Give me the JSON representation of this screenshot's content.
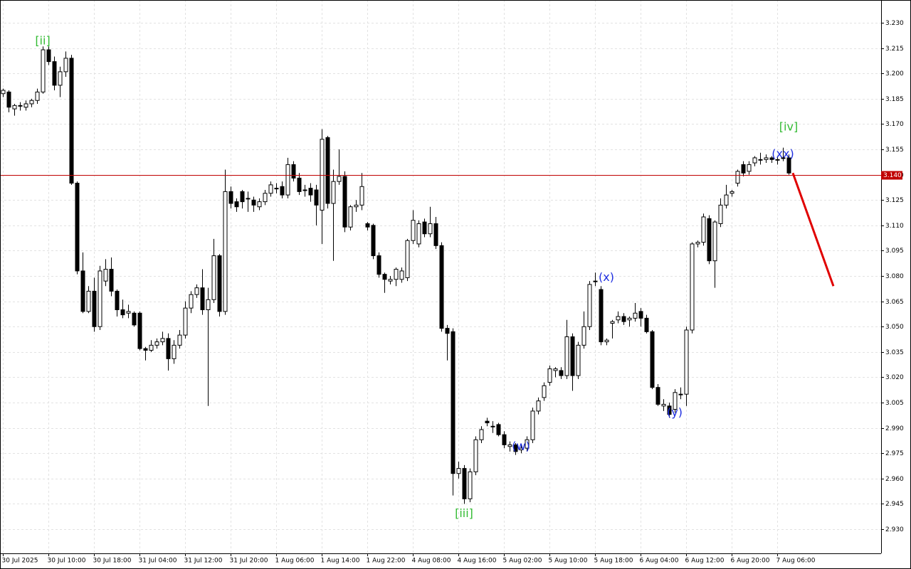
{
  "chart_data": {
    "type": "candlestick",
    "categories": [
      "30 Jul 2025",
      null,
      null,
      null,
      null,
      null,
      null,
      null,
      "30 Jul 10:00",
      null,
      null,
      null,
      null,
      null,
      null,
      null,
      "30 Jul 18:00",
      null,
      null,
      null,
      null,
      null,
      null,
      null,
      "31 Jul 04:00",
      null,
      null,
      null,
      null,
      null,
      null,
      null,
      "31 Jul 12:00",
      null,
      null,
      null,
      null,
      null,
      null,
      null,
      "31 Jul 20:00",
      null,
      null,
      null,
      null,
      null,
      null,
      null,
      "1 Aug 06:00",
      null,
      null,
      null,
      null,
      null,
      null,
      null,
      "1 Aug 14:00",
      null,
      null,
      null,
      null,
      null,
      null,
      null,
      "1 Aug 22:00",
      null,
      null,
      null,
      null,
      null,
      null,
      null,
      "4 Aug 08:00",
      null,
      null,
      null,
      null,
      null,
      null,
      null,
      "4 Aug 16:00",
      null,
      null,
      null,
      null,
      null,
      null,
      null,
      "5 Aug 02:00",
      null,
      null,
      null,
      null,
      null,
      null,
      null,
      "5 Aug 10:00",
      null,
      null,
      null,
      null,
      null,
      null,
      null,
      "5 Aug 18:00",
      null,
      null,
      null,
      null,
      null,
      null,
      null,
      "6 Aug 04:00",
      null,
      null,
      null,
      null,
      null,
      null,
      null,
      "6 Aug 12:00",
      null,
      null,
      null,
      null,
      null,
      null,
      null,
      "6 Aug 20:00",
      null,
      null,
      null,
      null,
      null,
      null,
      null,
      "7 Aug 06:00",
      null,
      null
    ],
    "open": [
      3.188,
      3.189,
      3.179,
      3.181,
      3.18,
      3.182,
      3.184,
      3.189,
      3.214,
      3.207,
      3.193,
      3.201,
      3.209,
      3.135,
      3.083,
      3.059,
      3.071,
      3.05,
      3.077,
      3.084,
      3.071,
      3.06,
      3.058,
      3.058,
      3.058,
      3.037,
      3.036,
      3.039,
      3.041,
      3.043,
      3.031,
      3.039,
      3.045,
      3.061,
      3.069,
      3.073,
      3.06,
      3.066,
      3.092,
      3.059,
      3.13,
      3.124,
      3.13,
      3.126,
      3.125,
      3.121,
      3.124,
      3.129,
      3.132,
      3.133,
      3.128,
      3.146,
      3.138,
      3.131,
      3.132,
      3.131,
      3.119,
      3.162,
      3.123,
      3.136,
      3.139,
      3.109,
      3.121,
      3.122,
      3.111,
      3.11,
      3.092,
      3.081,
      3.077,
      3.078,
      3.078,
      3.079,
      3.101,
      3.099,
      3.112,
      3.105,
      3.111,
      3.098,
      3.049,
      3.047,
      2.963,
      2.966,
      2.948,
      2.964,
      2.983,
      2.994,
      2.991,
      2.992,
      2.986,
      2.979,
      2.98,
      2.977,
      2.978,
      2.983,
      3.0,
      3.008,
      3.017,
      3.024,
      3.024,
      3.021,
      3.044,
      3.021,
      3.039,
      3.05,
      3.077,
      3.072,
      3.041,
      3.052,
      3.054,
      3.056,
      3.054,
      3.055,
      3.059,
      3.055,
      3.047,
      3.014,
      3.003,
      3.003,
      3.001,
      3.01,
      3.01,
      3.048,
      3.099,
      3.1,
      3.114,
      3.089,
      3.111,
      3.122,
      3.129,
      3.135,
      3.146,
      3.142,
      3.147,
      3.149,
      3.149,
      3.15,
      3.149,
      3.15,
      3.15
    ],
    "high": [
      3.191,
      3.19,
      3.182,
      3.183,
      3.184,
      3.185,
      3.191,
      3.216,
      3.216,
      3.21,
      3.204,
      3.213,
      3.211,
      3.136,
      3.094,
      3.074,
      3.079,
      3.086,
      3.09,
      3.091,
      3.072,
      3.066,
      3.063,
      3.059,
      3.059,
      3.038,
      3.042,
      3.043,
      3.047,
      3.046,
      3.042,
      3.048,
      3.065,
      3.071,
      3.075,
      3.084,
      3.073,
      3.102,
      3.093,
      3.143,
      3.133,
      3.126,
      3.131,
      3.13,
      3.127,
      3.126,
      3.131,
      3.136,
      3.135,
      3.136,
      3.15,
      3.148,
      3.141,
      3.134,
      3.135,
      3.134,
      3.167,
      3.163,
      3.143,
      3.155,
      3.142,
      3.122,
      3.125,
      3.141,
      3.112,
      3.111,
      3.094,
      3.082,
      3.08,
      3.085,
      3.085,
      3.102,
      3.119,
      3.113,
      3.114,
      3.121,
      3.115,
      3.1,
      3.051,
      3.049,
      2.97,
      2.968,
      2.966,
      2.985,
      2.991,
      2.996,
      2.994,
      2.993,
      2.988,
      2.982,
      2.981,
      2.98,
      2.985,
      3.002,
      3.008,
      3.017,
      3.027,
      3.026,
      3.026,
      3.054,
      3.046,
      3.041,
      3.059,
      3.077,
      3.082,
      3.074,
      3.043,
      3.054,
      3.059,
      3.058,
      3.056,
      3.064,
      3.061,
      3.057,
      3.048,
      3.016,
      3.007,
      3.005,
      3.013,
      3.014,
      3.05,
      3.1,
      3.101,
      3.117,
      3.116,
      3.113,
      3.126,
      3.134,
      3.131,
      3.143,
      3.148,
      3.148,
      3.151,
      3.153,
      3.152,
      3.151,
      3.151,
      3.156,
      3.152
    ],
    "low": [
      3.186,
      3.177,
      3.175,
      3.178,
      3.178,
      3.18,
      3.182,
      3.188,
      3.205,
      3.19,
      3.186,
      3.198,
      3.134,
      3.081,
      3.058,
      3.058,
      3.047,
      3.048,
      3.074,
      3.068,
      3.056,
      3.055,
      3.055,
      3.05,
      3.036,
      3.03,
      3.035,
      3.037,
      3.039,
      3.024,
      3.028,
      3.037,
      3.043,
      3.058,
      3.067,
      3.057,
      3.003,
      3.064,
      3.056,
      3.057,
      3.12,
      3.118,
      3.12,
      3.118,
      3.118,
      3.119,
      3.122,
      3.127,
      3.129,
      3.126,
      3.126,
      3.136,
      3.128,
      3.127,
      3.124,
      3.11,
      3.099,
      3.12,
      3.089,
      3.134,
      3.106,
      3.107,
      3.118,
      3.119,
      3.107,
      3.09,
      3.079,
      3.07,
      3.075,
      3.074,
      3.076,
      3.077,
      3.099,
      3.097,
      3.103,
      3.103,
      3.096,
      3.047,
      3.03,
      2.95,
      2.96,
      2.945,
      2.946,
      2.962,
      2.981,
      2.991,
      2.987,
      2.985,
      2.978,
      2.976,
      2.974,
      2.975,
      2.976,
      2.981,
      2.998,
      3.006,
      3.015,
      3.02,
      3.019,
      3.019,
      3.012,
      3.019,
      3.037,
      3.048,
      3.074,
      3.039,
      3.039,
      3.043,
      3.052,
      3.051,
      3.05,
      3.053,
      3.05,
      3.046,
      3.013,
      3.003,
      3.0,
      2.996,
      2.999,
      3.007,
      3.003,
      3.046,
      3.097,
      3.098,
      3.087,
      3.073,
      3.109,
      3.12,
      3.127,
      3.133,
      3.139,
      3.14,
      3.145,
      3.146,
      3.147,
      3.147,
      3.146,
      3.148,
      3.14
    ],
    "close": [
      3.19,
      3.18,
      3.181,
      3.181,
      3.182,
      3.184,
      3.189,
      3.214,
      3.207,
      3.193,
      3.201,
      3.209,
      3.135,
      3.083,
      3.059,
      3.071,
      3.05,
      3.083,
      3.084,
      3.071,
      3.06,
      3.057,
      3.059,
      3.051,
      3.037,
      3.036,
      3.039,
      3.041,
      3.043,
      3.031,
      3.039,
      3.045,
      3.061,
      3.069,
      3.073,
      3.06,
      3.066,
      3.092,
      3.059,
      3.13,
      3.123,
      3.121,
      3.124,
      3.126,
      3.122,
      3.124,
      3.129,
      3.134,
      3.132,
      3.128,
      3.146,
      3.138,
      3.13,
      3.131,
      3.128,
      3.122,
      3.161,
      3.123,
      3.136,
      3.139,
      3.109,
      3.121,
      3.122,
      3.133,
      3.109,
      3.092,
      3.081,
      3.078,
      3.078,
      3.084,
      3.083,
      3.101,
      3.113,
      3.111,
      3.105,
      3.111,
      3.098,
      3.049,
      3.046,
      2.963,
      2.966,
      2.948,
      2.964,
      2.983,
      2.989,
      2.993,
      2.991,
      2.986,
      2.98,
      2.98,
      2.976,
      2.978,
      2.983,
      3.0,
      3.006,
      3.015,
      3.025,
      3.025,
      3.021,
      3.044,
      3.021,
      3.039,
      3.05,
      3.075,
      3.077,
      3.041,
      3.042,
      3.053,
      3.056,
      3.053,
      3.055,
      3.058,
      3.055,
      3.047,
      3.014,
      3.004,
      3.004,
      2.998,
      3.011,
      3.01,
      3.048,
      3.099,
      3.1,
      3.115,
      3.089,
      3.112,
      3.122,
      3.128,
      3.13,
      3.142,
      3.141,
      3.146,
      3.15,
      3.149,
      3.15,
      3.149,
      3.149,
      3.15,
      3.141
    ],
    "up_color": "#ffffff",
    "down_color": "#000000",
    "ylim": [
      2.9157,
      3.2435
    ],
    "yticks": [
      {
        "value": 3.23,
        "label": "3.230"
      },
      3.215,
      {
        "value": 3.2,
        "label": "3.200"
      },
      3.185,
      {
        "value": 3.17,
        "label": "3.170"
      },
      3.155,
      {
        "value": 3.14,
        "label": "3.140"
      },
      3.125,
      {
        "value": 3.11,
        "label": "3.110"
      },
      3.095,
      {
        "value": 3.08,
        "label": "3.080"
      },
      3.065,
      {
        "value": 3.05,
        "label": "3.050"
      },
      3.035,
      {
        "value": 3.02,
        "label": "3.020"
      },
      3.005,
      {
        "value": 2.99,
        "label": "2.990"
      },
      2.975,
      {
        "value": 2.96,
        "label": "2.960"
      },
      2.945,
      {
        "value": 2.93,
        "label": "2.930"
      }
    ],
    "grid": true,
    "price_line": {
      "value": 3.14,
      "label": "3.140",
      "color": "#c00000"
    },
    "forecast": {
      "values": [
        3.141,
        3.074
      ],
      "color": "#e00000"
    },
    "annotations": [
      {
        "text": "[ii]",
        "index": 7,
        "value": 3.219,
        "color": "#33bb33"
      },
      {
        "text": "[iii]",
        "index": 81,
        "value": 2.939,
        "color": "#33bb33"
      },
      {
        "text": "[iv]",
        "index": 138,
        "value": 3.168,
        "color": "#33bb33"
      },
      {
        "text": "(x)",
        "index": 106,
        "value": 3.079,
        "color": "#1f2fe0"
      },
      {
        "text": "(w)",
        "index": 91,
        "value": 2.979,
        "color": "#1f2fe0"
      },
      {
        "text": "(y)",
        "index": 118,
        "value": 2.999,
        "color": "#1f2fe0"
      },
      {
        "text": "(xx)",
        "index": 137,
        "value": 3.152,
        "color": "#1f2fe0"
      }
    ]
  }
}
